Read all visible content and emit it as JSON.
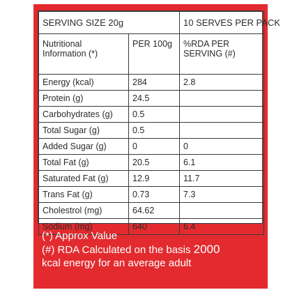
{
  "header": {
    "serving_size": "SERVING SIZE  20g",
    "serves_per_pack": "10 SERVES PER PACK"
  },
  "subheader": {
    "label": "Nutritional Information (*)",
    "per_100g": "PER 100g",
    "rda": "%RDA PER SERVING (#)"
  },
  "rows": [
    {
      "nutrient": "Energy (kcal)",
      "per_100g": "284",
      "rda": "2.8"
    },
    {
      "nutrient": "Protein (g)",
      "per_100g": "24.5",
      "rda": ""
    },
    {
      "nutrient": "Carbohydrates (g)",
      "per_100g": "0.5",
      "rda": ""
    },
    {
      "nutrient": "Total Sugar (g)",
      "per_100g": "0.5",
      "rda": ""
    },
    {
      "nutrient": "Added Sugar (g)",
      "per_100g": "0",
      "rda": "0"
    },
    {
      "nutrient": "Total Fat (g)",
      "per_100g": "20.5",
      "rda": "6.1"
    },
    {
      "nutrient": "Saturated Fat (g)",
      "per_100g": "12.9",
      "rda": "11.7"
    },
    {
      "nutrient": "Trans Fat (g)",
      "per_100g": "0.73",
      "rda": "7.3"
    },
    {
      "nutrient": "Cholestrol (mg)",
      "per_100g": "64.62",
      "rda": ""
    },
    {
      "nutrient": "Sodium (mg)",
      "per_100g": "640",
      "rda": "6.4"
    }
  ],
  "footer": {
    "approx_note": "(*) Approx Value",
    "rda_note_prefix": "(#) RDA Calculated on the basis ",
    "rda_note_value": "2000",
    "rda_note_suffix": "kcal energy for an average adult"
  },
  "colors": {
    "panel_red": "#e32b2f",
    "table_bg": "#ffffff",
    "border": "#3a3a3a",
    "text": "#2b2b2b"
  }
}
